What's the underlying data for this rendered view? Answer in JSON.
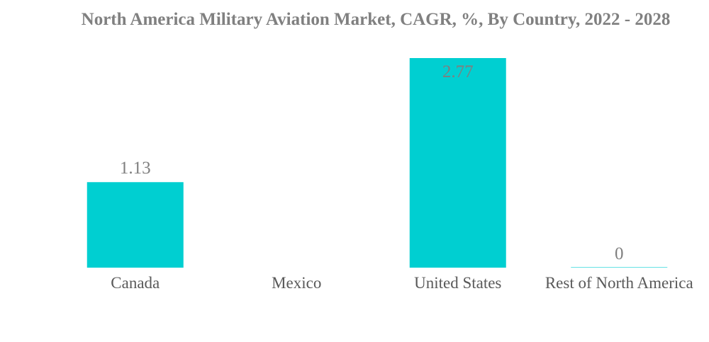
{
  "chart_data": {
    "type": "bar",
    "title": "North America Military Aviation Market, CAGR, %, By Country, 2022 - 2028",
    "categories": [
      "Canada",
      "Mexico",
      "United States",
      "Rest of North America"
    ],
    "values": [
      1.13,
      null,
      2.77,
      0
    ],
    "value_labels": [
      "1.13",
      "",
      "2.77",
      "0"
    ],
    "xlabel": "",
    "ylabel": "",
    "ylim": [
      0,
      2.77
    ],
    "grid": false,
    "legend": "none",
    "bar_color": "#00cfd1"
  }
}
